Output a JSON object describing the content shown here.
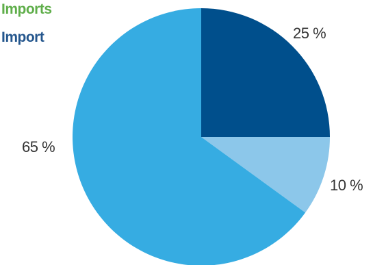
{
  "chart_data": {
    "type": "pie",
    "title": "Imports",
    "subtitle": "Import",
    "categories": [
      "",
      "",
      ""
    ],
    "values": [
      25,
      10,
      65
    ],
    "labels": [
      "25 %",
      "10 %",
      "65 %"
    ],
    "colors": [
      "#004f8c",
      "#8cc7ea",
      "#36ace2"
    ],
    "start_angle_deg": 0,
    "direction": "clockwise"
  },
  "colors": {
    "title": "#5fae4a",
    "subtitle": "#24568d"
  }
}
